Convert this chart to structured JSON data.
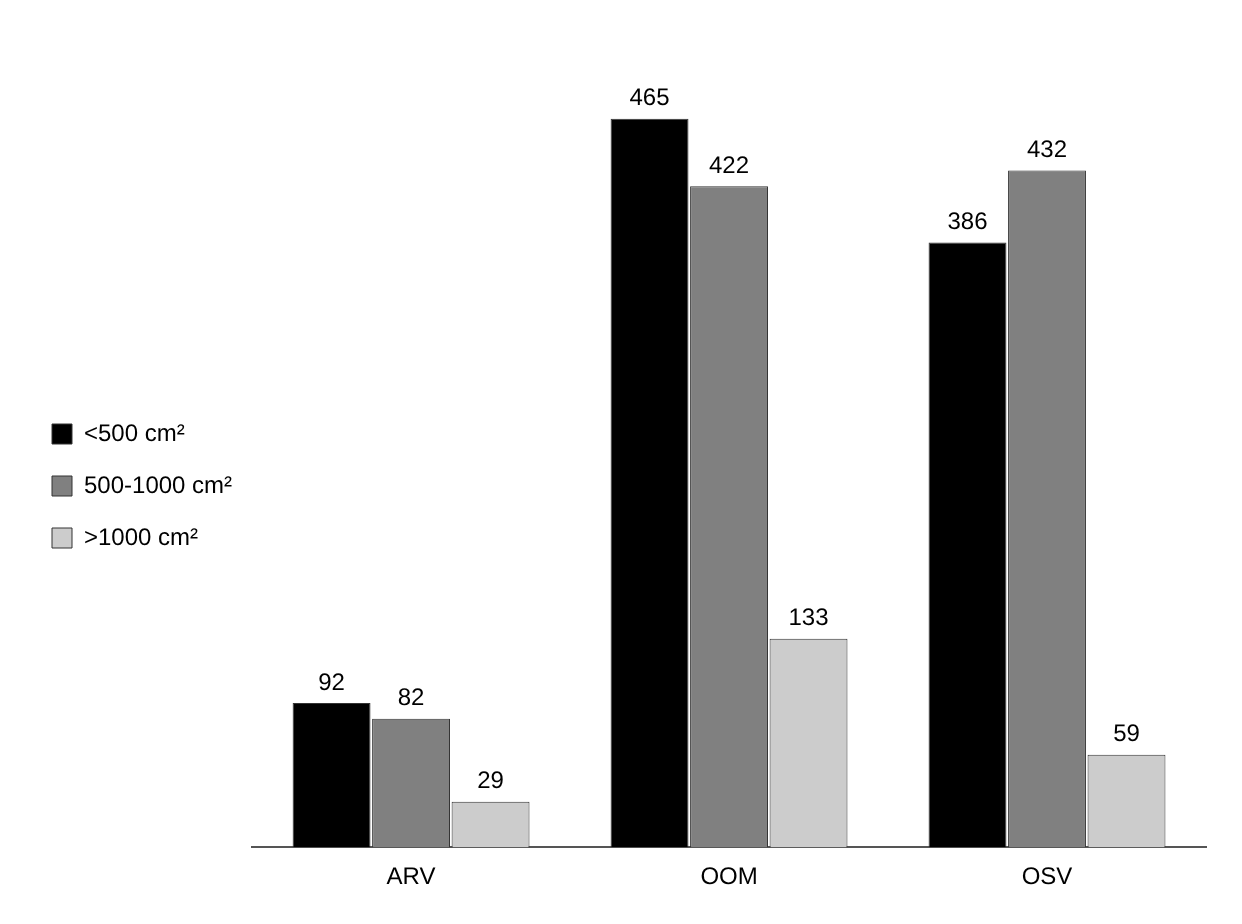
{
  "chart_data": {
    "type": "bar",
    "categories": [
      "ARV",
      "OOM",
      "OSV"
    ],
    "series": [
      {
        "name": "<500 cm²",
        "color": "#000000",
        "values": [
          92,
          465,
          386
        ]
      },
      {
        "name": "500-1000 cm²",
        "color": "#808080",
        "values": [
          82,
          422,
          432
        ]
      },
      {
        "name": ">1000 cm²",
        "color": "#cccccc",
        "values": [
          29,
          133,
          59
        ]
      }
    ],
    "data_labels": true,
    "legend": "left",
    "grid": false
  }
}
